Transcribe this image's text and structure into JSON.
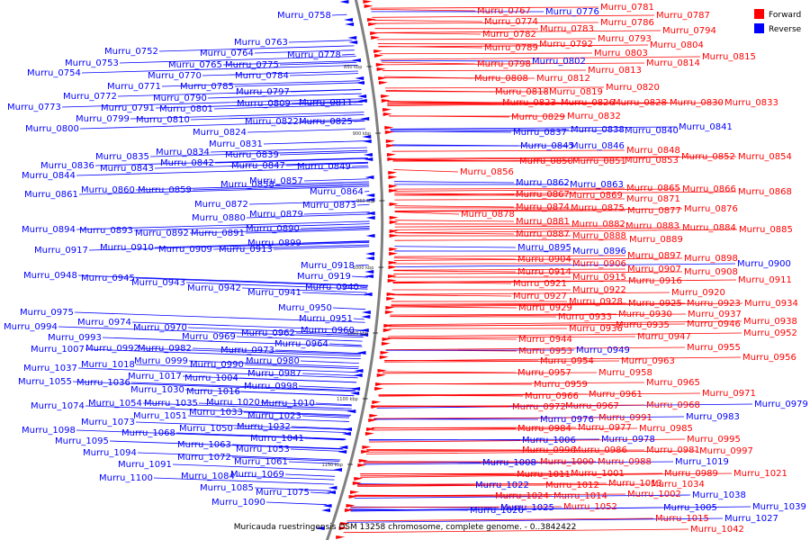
{
  "caption": "Muricauda ruestringensis DSM 13258 chromosome, complete genome. - 0..3842422",
  "legend": [
    {
      "label": "Forward",
      "color": "#ff0000"
    },
    {
      "label": "Reverse",
      "color": "#0000ff"
    }
  ],
  "colors": {
    "forward": "#ff0000",
    "reverse": "#0000ff",
    "backbone": "#808080"
  },
  "ticks": [
    "850 kbp",
    "900 kbp",
    "950 kbp",
    "1000 kbp",
    "1050 kbp",
    "1100 kbp",
    "1150 kbp"
  ],
  "left_labels": [
    [
      "Murru_0758",
      1
    ],
    [
      "Murru_0763",
      1
    ],
    [
      "Murru_0764",
      1
    ],
    [
      "Murru_0778",
      1
    ],
    [
      "Murru_0752",
      1
    ],
    [
      "Murru_0765",
      1
    ],
    [
      "Murru_0775",
      1
    ],
    [
      "Murru_0753",
      1
    ],
    [
      "Murru_0770",
      1
    ],
    [
      "Murru_0784",
      1
    ],
    [
      "Murru_0754",
      1
    ],
    [
      "Murru_0771",
      1
    ],
    [
      "Murru_0785",
      1
    ],
    [
      "Murru_0772",
      1
    ],
    [
      "Murru_0790",
      1
    ],
    [
      "Murru_0797",
      1
    ],
    [
      "Murru_0773",
      1
    ],
    [
      "Murru_0791",
      1
    ],
    [
      "Murru_0801",
      1
    ],
    [
      "Murru_0809",
      1
    ],
    [
      "Murru_0811",
      1
    ],
    [
      "Murru_0799",
      1
    ],
    [
      "Murru_0810",
      1
    ],
    [
      "Murru_0800",
      1
    ],
    [
      "Murru_0822",
      1
    ],
    [
      "Murru_0825",
      1
    ],
    [
      "Murru_0824",
      1
    ],
    [
      "Murru_0831",
      1
    ],
    [
      "Murru_0835",
      1
    ],
    [
      "Murru_0834",
      1
    ],
    [
      "Murru_0839",
      1
    ],
    [
      "Murru_0836",
      1
    ],
    [
      "Murru_0843",
      1
    ],
    [
      "Murru_0842",
      1
    ],
    [
      "Murru_0847",
      1
    ],
    [
      "Murru_0849",
      1
    ],
    [
      "Murru_0844",
      1
    ],
    [
      "Murru_0857",
      1
    ],
    [
      "Murru_0858",
      1
    ],
    [
      "Murru_0861",
      1
    ],
    [
      "Murru_0860",
      1
    ],
    [
      "Murru_0859",
      1
    ],
    [
      "Murru_0864",
      1
    ],
    [
      "Murru_0872",
      1
    ],
    [
      "Murru_0873",
      1
    ],
    [
      "Murru_0880",
      1
    ],
    [
      "Murru_0879",
      1
    ],
    [
      "Murru_0890",
      1
    ],
    [
      "Murru_0894",
      1
    ],
    [
      "Murru_0893",
      1
    ],
    [
      "Murru_0892",
      1
    ],
    [
      "Murru_0891",
      1
    ],
    [
      "Murru_0899",
      1
    ],
    [
      "Murru_0917",
      1
    ],
    [
      "Murru_0910",
      1
    ],
    [
      "Murru_0909",
      1
    ],
    [
      "Murru_0913",
      1
    ],
    [
      "Murru_0918",
      1
    ],
    [
      "Murru_0948",
      1
    ],
    [
      "Murru_0945",
      1
    ],
    [
      "Murru_0919",
      1
    ],
    [
      "Murru_0943",
      1
    ],
    [
      "Murru_0942",
      1
    ],
    [
      "Murru_0941",
      1
    ],
    [
      "Murru_0940",
      1
    ],
    [
      "Murru_0950",
      1
    ],
    [
      "Murru_0975",
      1
    ],
    [
      "Murru_0951",
      1
    ],
    [
      "Murru_0994",
      1
    ],
    [
      "Murru_0974",
      1
    ],
    [
      "Murru_0970",
      1
    ],
    [
      "Murru_0962",
      1
    ],
    [
      "Murru_0960",
      1
    ],
    [
      "Murru_0993",
      1
    ],
    [
      "Murru_0969",
      1
    ],
    [
      "Murru_1007",
      1
    ],
    [
      "Murru_0992",
      1
    ],
    [
      "Murru_0982",
      1
    ],
    [
      "Murru_0973",
      1
    ],
    [
      "Murru_0964",
      1
    ],
    [
      "Murru_0999",
      1
    ],
    [
      "Murru_0990",
      1
    ],
    [
      "Murru_0980",
      1
    ],
    [
      "Murru_1037",
      1
    ],
    [
      "Murru_1018",
      1
    ],
    [
      "Murru_0987",
      1
    ],
    [
      "Murru_1017",
      1
    ],
    [
      "Murru_1004",
      1
    ],
    [
      "Murru_1055",
      1
    ],
    [
      "Murru_1036",
      1
    ],
    [
      "Murru_0998",
      1
    ],
    [
      "Murru_1030",
      1
    ],
    [
      "Murru_1016",
      1
    ],
    [
      "Murru_1074",
      1
    ],
    [
      "Murru_1054",
      1
    ],
    [
      "Murru_1035",
      1
    ],
    [
      "Murru_1020",
      1
    ],
    [
      "Murru_1010",
      1
    ],
    [
      "Murru_1051",
      1
    ],
    [
      "Murru_1033",
      1
    ],
    [
      "Murru_1023",
      1
    ],
    [
      "Murru_1073",
      1
    ],
    [
      "Murru_1098",
      1
    ],
    [
      "Murru_1068",
      1
    ],
    [
      "Murru_1050",
      1
    ],
    [
      "Murru_1032",
      1
    ],
    [
      "Murru_1041",
      1
    ],
    [
      "Murru_1095",
      1
    ],
    [
      "Murru_1063",
      1
    ],
    [
      "Murru_1094",
      1
    ],
    [
      "Murru_1053",
      1
    ],
    [
      "Murru_1072",
      1
    ],
    [
      "Murru_1091",
      1
    ],
    [
      "Murru_1061",
      1
    ],
    [
      "Murru_1100",
      1
    ],
    [
      "Murru_1084",
      1
    ],
    [
      "Murru_1069",
      1
    ],
    [
      "Murru_1085",
      1
    ],
    [
      "Murru_1075",
      1
    ],
    [
      "Murru_1090",
      1
    ]
  ],
  "right_labels": [
    [
      "Murru_0767",
      "f"
    ],
    [
      "Murru_0776",
      "r"
    ],
    [
      "Murru_0781",
      "f"
    ],
    [
      "Murru_0787",
      "f"
    ],
    [
      "Murru_0774",
      "f"
    ],
    [
      "Murru_0786",
      "f"
    ],
    [
      "Murru_0783",
      "f"
    ],
    [
      "Murru_0794",
      "f"
    ],
    [
      "Murru_0782",
      "f"
    ],
    [
      "Murru_0793",
      "f"
    ],
    [
      "Murru_0789",
      "f"
    ],
    [
      "Murru_0792",
      "f"
    ],
    [
      "Murru_0804",
      "f"
    ],
    [
      "Murru_0803",
      "f"
    ],
    [
      "Murru_0815",
      "f"
    ],
    [
      "Murru_0798",
      "f"
    ],
    [
      "Murru_0802",
      "r"
    ],
    [
      "Murru_0814",
      "f"
    ],
    [
      "Murru_0813",
      "f"
    ],
    [
      "Murru_0808",
      "f"
    ],
    [
      "Murru_0812",
      "f"
    ],
    [
      "Murru_0820",
      "f"
    ],
    [
      "Murru_0818",
      "f"
    ],
    [
      "Murru_0819",
      "f"
    ],
    [
      "Murru_0823",
      "f"
    ],
    [
      "Murru_0826",
      "f"
    ],
    [
      "Murru_0828",
      "f"
    ],
    [
      "Murru_0830",
      "f"
    ],
    [
      "Murru_0833",
      "f"
    ],
    [
      "Murru_0829",
      "f"
    ],
    [
      "Murru_0832",
      "f"
    ],
    [
      "Murru_0841",
      "r"
    ],
    [
      "Murru_0837",
      "r"
    ],
    [
      "Murru_0838",
      "r"
    ],
    [
      "Murru_0840",
      "r"
    ],
    [
      "Murru_0845",
      "r"
    ],
    [
      "Murru_0846",
      "r"
    ],
    [
      "Murru_0848",
      "f"
    ],
    [
      "Murru_0850",
      "f"
    ],
    [
      "Murru_0851",
      "f"
    ],
    [
      "Murru_0853",
      "f"
    ],
    [
      "Murru_0852",
      "f"
    ],
    [
      "Murru_0854",
      "f"
    ],
    [
      "Murru_0856",
      "f"
    ],
    [
      "Murru_0862",
      "r"
    ],
    [
      "Murru_0863",
      "r"
    ],
    [
      "Murru_0865",
      "f"
    ],
    [
      "Murru_0866",
      "f"
    ],
    [
      "Murru_0868",
      "f"
    ],
    [
      "Murru_0867",
      "f"
    ],
    [
      "Murru_0869",
      "f"
    ],
    [
      "Murru_0871",
      "f"
    ],
    [
      "Murru_0874",
      "f"
    ],
    [
      "Murru_0875",
      "f"
    ],
    [
      "Murru_0877",
      "f"
    ],
    [
      "Murru_0876",
      "f"
    ],
    [
      "Murru_0878",
      "f"
    ],
    [
      "Murru_0881",
      "f"
    ],
    [
      "Murru_0882",
      "f"
    ],
    [
      "Murru_0883",
      "f"
    ],
    [
      "Murru_0884",
      "f"
    ],
    [
      "Murru_0885",
      "f"
    ],
    [
      "Murru_0887",
      "f"
    ],
    [
      "Murru_0888",
      "f"
    ],
    [
      "Murru_0889",
      "f"
    ],
    [
      "Murru_0895",
      "r"
    ],
    [
      "Murru_0896",
      "r"
    ],
    [
      "Murru_0897",
      "f"
    ],
    [
      "Murru_0898",
      "f"
    ],
    [
      "Murru_0904",
      "f"
    ],
    [
      "Murru_0906",
      "f"
    ],
    [
      "Murru_0900",
      "r"
    ],
    [
      "Murru_0907",
      "f"
    ],
    [
      "Murru_0908",
      "f"
    ],
    [
      "Murru_0914",
      "f"
    ],
    [
      "Murru_0915",
      "f"
    ],
    [
      "Murru_0911",
      "f"
    ],
    [
      "Murru_0916",
      "f"
    ],
    [
      "Murru_0921",
      "f"
    ],
    [
      "Murru_0922",
      "f"
    ],
    [
      "Murru_0920",
      "f"
    ],
    [
      "Murru_0927",
      "f"
    ],
    [
      "Murru_0928",
      "f"
    ],
    [
      "Murru_0925",
      "f"
    ],
    [
      "Murru_0923",
      "f"
    ],
    [
      "Murru_0934",
      "f"
    ],
    [
      "Murru_0929",
      "f"
    ],
    [
      "Murru_0937",
      "f"
    ],
    [
      "Murru_0933",
      "f"
    ],
    [
      "Murru_0930",
      "f"
    ],
    [
      "Murru_0938",
      "f"
    ],
    [
      "Murru_0935",
      "f"
    ],
    [
      "Murru_0946",
      "f"
    ],
    [
      "Murru_0936",
      "f"
    ],
    [
      "Murru_0952",
      "f"
    ],
    [
      "Murru_0944",
      "f"
    ],
    [
      "Murru_0947",
      "f"
    ],
    [
      "Murru_0955",
      "f"
    ],
    [
      "Murru_0953",
      "f"
    ],
    [
      "Murru_0949",
      "r"
    ],
    [
      "Murru_0956",
      "f"
    ],
    [
      "Murru_0954",
      "f"
    ],
    [
      "Murru_0963",
      "f"
    ],
    [
      "Murru_0957",
      "f"
    ],
    [
      "Murru_0958",
      "f"
    ],
    [
      "Murru_0965",
      "f"
    ],
    [
      "Murru_0959",
      "f"
    ],
    [
      "Murru_0971",
      "f"
    ],
    [
      "Murru_0966",
      "f"
    ],
    [
      "Murru_0961",
      "f"
    ],
    [
      "Murru_0979",
      "r"
    ],
    [
      "Murru_0972",
      "f"
    ],
    [
      "Murru_0967",
      "f"
    ],
    [
      "Murru_0968",
      "f"
    ],
    [
      "Murru_0983",
      "r"
    ],
    [
      "Murru_0976",
      "r"
    ],
    [
      "Murru_0991",
      "f"
    ],
    [
      "Murru_0984",
      "f"
    ],
    [
      "Murru_0977",
      "f"
    ],
    [
      "Murru_0985",
      "f"
    ],
    [
      "Murru_0978",
      "r"
    ],
    [
      "Murru_0995",
      "f"
    ],
    [
      "Murru_1006",
      "r"
    ],
    [
      "Murru_0996",
      "f"
    ],
    [
      "Murru_0986",
      "f"
    ],
    [
      "Murru_0981",
      "f"
    ],
    [
      "Murru_0997",
      "f"
    ],
    [
      "Murru_0988",
      "f"
    ],
    [
      "Murru_1019",
      "r"
    ],
    [
      "Murru_1008",
      "r"
    ],
    [
      "Murru_1000",
      "f"
    ],
    [
      "Murru_0989",
      "f"
    ],
    [
      "Murru_1021",
      "f"
    ],
    [
      "Murru_1011",
      "f"
    ],
    [
      "Murru_1001",
      "f"
    ],
    [
      "Murru_1034",
      "f"
    ],
    [
      "Murru_1022",
      "r"
    ],
    [
      "Murru_1012",
      "f"
    ],
    [
      "Murru_1013",
      "f"
    ],
    [
      "Murru_1002",
      "f"
    ],
    [
      "Murru_1038",
      "r"
    ],
    [
      "Murru_1024",
      "f"
    ],
    [
      "Murru_1014",
      "f"
    ],
    [
      "Murru_1005",
      "r"
    ],
    [
      "Murru_1039",
      "r"
    ],
    [
      "Murru_1025",
      "r"
    ],
    [
      "Murru_1052",
      "f"
    ],
    [
      "Murru_1026",
      "r"
    ],
    [
      "Murru_1015",
      "f"
    ],
    [
      "Murru_1027",
      "r"
    ],
    [
      "Murru_1042",
      "f"
    ]
  ]
}
